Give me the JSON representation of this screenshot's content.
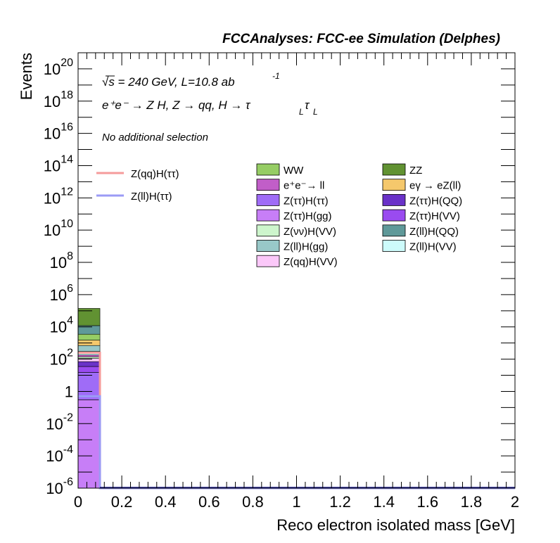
{
  "chart_data": {
    "type": "bar",
    "histtype": "stacked histogram (log y)",
    "title": "FCCAnalyses: FCC-ee Simulation (Delphes)",
    "xlabel": "Reco electron isolated mass [GeV]",
    "ylabel": "Events",
    "xlim": [
      0,
      2
    ],
    "ylim": [
      1e-06,
      1e+21
    ],
    "ylog": true,
    "x_tick_labels": [
      "0",
      "0.2",
      "0.4",
      "0.6",
      "0.8",
      "1",
      "1.2",
      "1.4",
      "1.6",
      "1.8",
      "2"
    ],
    "y_tick_labels": [
      {
        "base": "10",
        "exp": "20"
      },
      {
        "base": "10",
        "exp": "18"
      },
      {
        "base": "10",
        "exp": "16"
      },
      {
        "base": "10",
        "exp": "14"
      },
      {
        "base": "10",
        "exp": "12"
      },
      {
        "base": "10",
        "exp": "10"
      },
      {
        "base": "10",
        "exp": "8"
      },
      {
        "base": "10",
        "exp": "6"
      },
      {
        "base": "10",
        "exp": "4"
      },
      {
        "base": "10",
        "exp": "2"
      },
      {
        "base": "1",
        "exp": ""
      },
      {
        "base": "10",
        "exp": "-2"
      },
      {
        "base": "10",
        "exp": "-4"
      },
      {
        "base": "10",
        "exp": "-6"
      }
    ],
    "annotations": {
      "sqrt_s": "√s = 240 GeV, L=10.8 ab",
      "lumi_exp": "-1",
      "process": "e⁺e⁻ → Z H, Z  → qq, H  → τ",
      "process_sub1": "L",
      "process_tau": "τ",
      "process_sub2": "L",
      "selection": "No additional selection"
    },
    "bin": [
      0,
      0.1
    ],
    "stack_bottom": 1e-06,
    "backgrounds": [
      {
        "name": "Z(ττ)H(gg)",
        "color": "#c77ef7",
        "top": 0.3
      },
      {
        "name": "Z(ττ)H(ττ)",
        "color": "#9f6cf7",
        "top": 15
      },
      {
        "name": "Z(ττ)H(VV)",
        "color": "#9a4bf0",
        "top": 35
      },
      {
        "name": "Z(ττ)H(QQ)",
        "color": "#6a32c8",
        "top": 70
      },
      {
        "name": "Z(qq)H(VV)",
        "color": "#fbc8f9",
        "top": 110
      },
      {
        "name": "Z(νν)H(VV)",
        "color": "#cdf5cc",
        "top": 140
      },
      {
        "name": "e⁺e⁻→ ll",
        "color": "#c15ec8",
        "top": 180
      },
      {
        "name": "Z(ll)H(VV)",
        "color": "#cdfbfb",
        "top": 300
      },
      {
        "name": "Z(ll)H(gg)",
        "color": "#98c8c8",
        "top": 700
      },
      {
        "name": "eγ → eZ(ll)",
        "color": "#f5c86c",
        "top": 1500
      },
      {
        "name": "WW",
        "color": "#96cd64",
        "top": 3500
      },
      {
        "name": "Z(ll)H(QQ)",
        "color": "#5f9999",
        "top": 12000
      },
      {
        "name": "ZZ",
        "color": "#619232",
        "top": 140000
      }
    ],
    "signals": [
      {
        "name": "Z(qq)H(ττ)",
        "color": "#f59b9b",
        "value": 250
      },
      {
        "name": "Z(ll)H(ττ)",
        "color": "#9b9bf5",
        "value": 0.5
      }
    ],
    "legend_signals": [
      "Z(qq)H(ττ)",
      "Z(ll)H(ττ)"
    ],
    "legend_backgrounds": [
      {
        "name": "WW",
        "color": "#96cd64"
      },
      {
        "name": "ZZ",
        "color": "#619232"
      },
      {
        "name": "e⁺e⁻→ ll",
        "color": "#c15ec8"
      },
      {
        "name": "eγ → eZ(ll)",
        "color": "#f5c86c"
      },
      {
        "name": "Z(ττ)H(ττ)",
        "color": "#9f6cf7"
      },
      {
        "name": "Z(ττ)H(QQ)",
        "color": "#6a32c8"
      },
      {
        "name": "Z(ττ)H(gg)",
        "color": "#c77ef7"
      },
      {
        "name": "Z(ττ)H(VV)",
        "color": "#9a4bf0"
      },
      {
        "name": "Z(νν)H(VV)",
        "color": "#cdf5cc"
      },
      {
        "name": "Z(ll)H(QQ)",
        "color": "#5f9999"
      },
      {
        "name": "Z(ll)H(gg)",
        "color": "#98c8c8"
      },
      {
        "name": "Z(ll)H(VV)",
        "color": "#cdfbfb"
      },
      {
        "name": "Z(qq)H(VV)",
        "color": "#fbc8f9"
      }
    ]
  }
}
